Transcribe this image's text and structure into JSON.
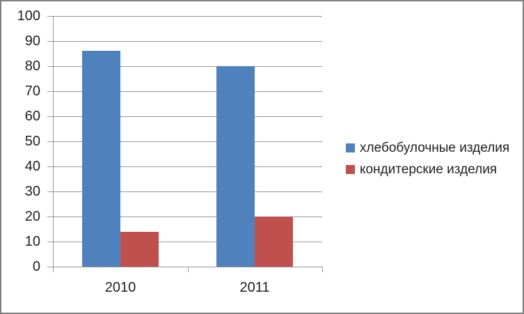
{
  "chart_data": {
    "type": "bar",
    "categories": [
      "2010",
      "2011"
    ],
    "series": [
      {
        "name": "хлебобулочные изделия",
        "color": "#4F81BD",
        "values": [
          86,
          80
        ]
      },
      {
        "name": "кондитерские изделия",
        "color": "#C0504D",
        "values": [
          14,
          20
        ]
      }
    ],
    "title": "",
    "xlabel": "",
    "ylabel": "",
    "ylim": [
      0,
      100
    ],
    "ytick_labels": [
      "0",
      "10",
      "20",
      "30",
      "40",
      "50",
      "60",
      "70",
      "80",
      "90",
      "100"
    ],
    "grid": true,
    "legend_position": "right"
  },
  "colors": {
    "grid": "#969696",
    "text": "#1f1f1f",
    "frame_border": "#7f7f7f",
    "background": "#ffffff"
  }
}
